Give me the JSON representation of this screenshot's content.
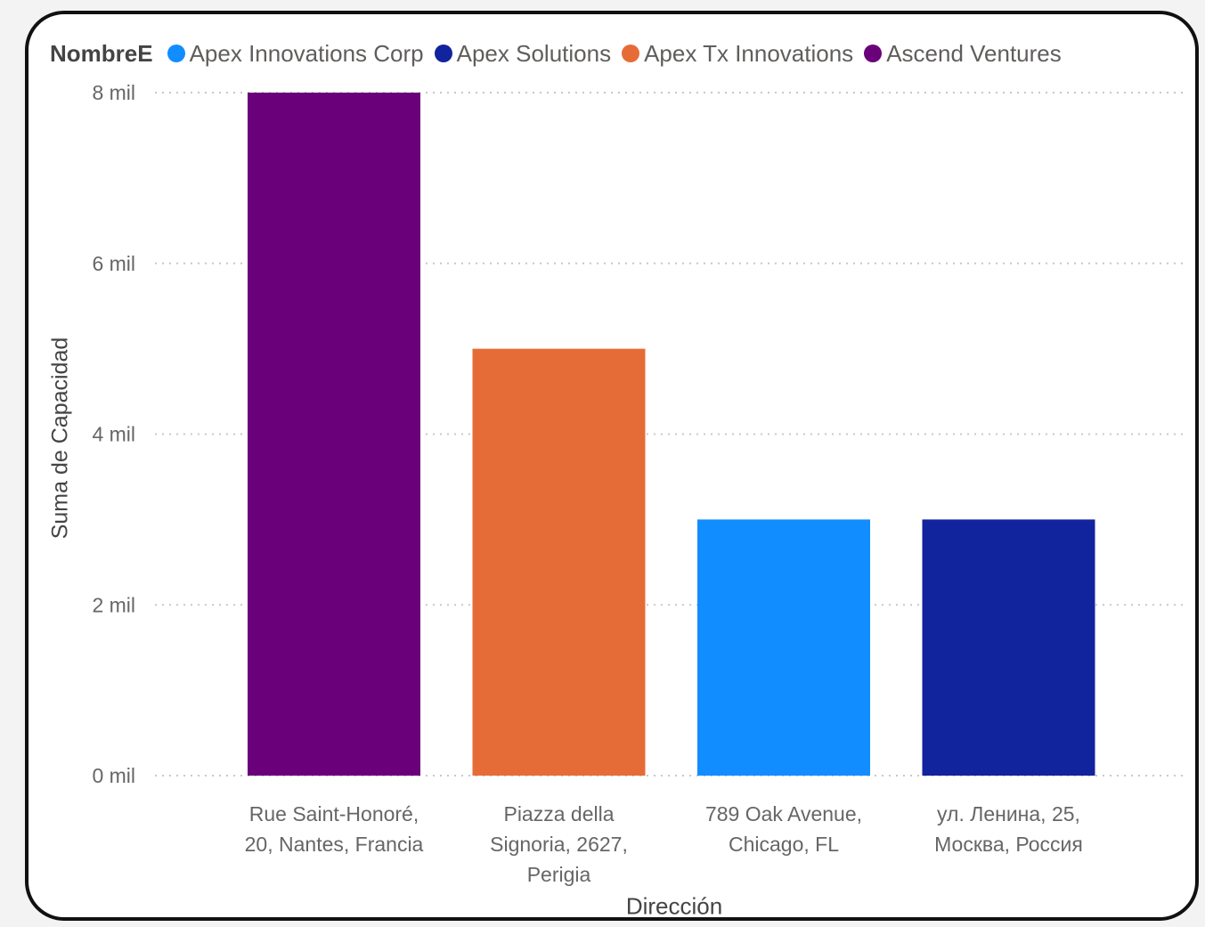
{
  "legend": {
    "title": "NombreE",
    "items": [
      {
        "label": "Apex Innovations Corp",
        "color": "#118DFF"
      },
      {
        "label": "Apex Solutions",
        "color": "#12239E"
      },
      {
        "label": "Apex Tx Innovations",
        "color": "#E66C37"
      },
      {
        "label": "Ascend Ventures",
        "color": "#6B007B"
      }
    ]
  },
  "chart_data": {
    "type": "bar",
    "ylabel": "Suma de Capacidad",
    "xlabel": "Dirección",
    "ylim": [
      0,
      8000
    ],
    "yticks": [
      {
        "value": 0,
        "label": "0 mil"
      },
      {
        "value": 2000,
        "label": "2 mil"
      },
      {
        "value": 4000,
        "label": "4 mil"
      },
      {
        "value": 6000,
        "label": "6 mil"
      },
      {
        "value": 8000,
        "label": "8 mil"
      }
    ],
    "grid": true,
    "legend_position": "top-left",
    "categories": [
      {
        "lines": [
          "Rue Saint-Honoré,",
          "20, Nantes, Francia"
        ],
        "value": 8000,
        "series": "Ascend Ventures",
        "color": "#6B007B"
      },
      {
        "lines": [
          "Piazza della",
          "Signoria, 2627,",
          "Perigia"
        ],
        "value": 5000,
        "series": "Apex Tx Innovations",
        "color": "#E66C37"
      },
      {
        "lines": [
          "789 Oak Avenue,",
          "Chicago, FL"
        ],
        "value": 3000,
        "series": "Apex Innovations Corp",
        "color": "#118DFF"
      },
      {
        "lines": [
          "ул. Ленина, 25,",
          "Москва, Россия"
        ],
        "value": 3000,
        "series": "Apex Solutions",
        "color": "#12239E"
      }
    ]
  }
}
